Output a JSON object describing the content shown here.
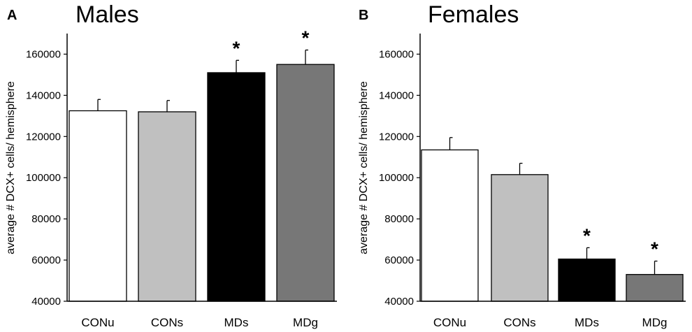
{
  "chart_data": [
    {
      "type": "bar",
      "panel": "A",
      "title": "Males",
      "ylabel": "average # DCX+ cells/ hemisphere",
      "xlabel": "",
      "categories": [
        "CONu",
        "CONs",
        "MDs",
        "MDg"
      ],
      "values": [
        132500,
        132000,
        151000,
        155000
      ],
      "errors": [
        5500,
        5500,
        6000,
        7000
      ],
      "significant": [
        "",
        "",
        "*",
        "*"
      ],
      "bar_colors": [
        "#ffffff",
        "#c0c0c0",
        "#000000",
        "#777777"
      ],
      "ylim": [
        40000,
        170000
      ],
      "yticks": [
        40000,
        60000,
        80000,
        100000,
        120000,
        140000,
        160000
      ]
    },
    {
      "type": "bar",
      "panel": "B",
      "title": "Females",
      "ylabel": "average # DCX+ cells/ hemisphere",
      "xlabel": "",
      "categories": [
        "CONu",
        "CONs",
        "MDs",
        "MDg"
      ],
      "values": [
        113500,
        101500,
        60500,
        53000
      ],
      "errors": [
        6000,
        5500,
        5500,
        6500
      ],
      "significant": [
        "",
        "",
        "*",
        "*"
      ],
      "bar_colors": [
        "#ffffff",
        "#c0c0c0",
        "#000000",
        "#777777"
      ],
      "ylim": [
        40000,
        170000
      ],
      "yticks": [
        40000,
        60000,
        80000,
        100000,
        120000,
        140000,
        160000
      ]
    }
  ]
}
